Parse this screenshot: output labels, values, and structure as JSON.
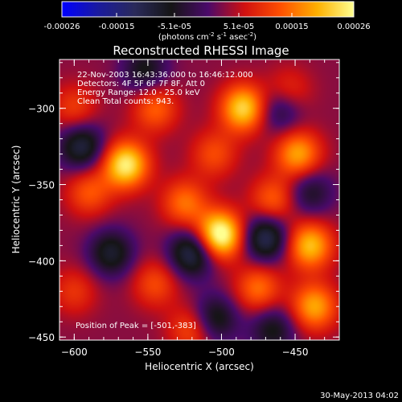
{
  "colorbar": {
    "ticks": [
      "-0.00026",
      "-0.00015",
      "-5.1e-05",
      "5.1e-05",
      "0.00015",
      "0.00026"
    ],
    "unit_text": "(photons cm",
    "unit_exp1": "-2",
    "unit_mid": " s",
    "unit_exp2": "-1",
    "unit_end": " asec",
    "unit_exp3": "-2",
    "unit_close": ")",
    "range": [
      -0.00026,
      0.00026
    ],
    "colormap": [
      "#0000ff",
      "#1a1a9e",
      "#2a2a5a",
      "#151515",
      "#4a0a6a",
      "#d01010",
      "#ff5000",
      "#ffb000",
      "#ffff90"
    ]
  },
  "chart_data": {
    "type": "heatmap",
    "title": "Reconstructed RHESSI Image",
    "xlabel": "Heliocentric X (arcsec)",
    "ylabel": "Heliocentric Y (arcsec)",
    "xlim": [
      -610,
      -420
    ],
    "ylim": [
      -452,
      -268
    ],
    "xticks": [
      -600,
      -550,
      -500,
      -450
    ],
    "yticks": [
      -300,
      -350,
      -400,
      -450
    ],
    "annotations": [
      "22-Nov-2003 16:43:36.000 to 16:46:12.000",
      "Detectors: 4F 5F 6F 7F 8F, Att 0",
      "Energy Range: 12.0 - 25.0 keV",
      "Clean     Total counts: 943."
    ],
    "peak_label": "Position of Peak = [-501,-383]",
    "peak": [
      -501,
      -383
    ],
    "blobs": [
      {
        "x": -501,
        "y": -383,
        "value": 0.00026
      },
      {
        "x": -565,
        "y": -337,
        "value": 0.00022
      },
      {
        "x": -485,
        "y": -300,
        "value": 0.0002
      },
      {
        "x": -448,
        "y": -330,
        "value": 0.00016
      },
      {
        "x": -440,
        "y": -390,
        "value": 0.00018
      },
      {
        "x": -437,
        "y": -430,
        "value": 0.00016
      },
      {
        "x": -475,
        "y": -418,
        "value": 0.00012
      },
      {
        "x": -590,
        "y": -355,
        "value": 0.0001
      },
      {
        "x": -545,
        "y": -300,
        "value": 0.00011
      },
      {
        "x": -525,
        "y": -362,
        "value": 0.00012
      },
      {
        "x": -465,
        "y": -360,
        "value": 0.00011
      },
      {
        "x": -600,
        "y": -300,
        "value": 8e-05
      },
      {
        "x": -545,
        "y": -415,
        "value": 9e-05
      },
      {
        "x": -520,
        "y": -445,
        "value": 0.0001
      },
      {
        "x": -505,
        "y": -330,
        "value": 9e-05
      },
      {
        "x": -600,
        "y": -420,
        "value": 7e-05
      },
      {
        "x": -455,
        "y": -290,
        "value": 9e-05
      },
      {
        "x": -575,
        "y": -395,
        "value": -0.00012
      },
      {
        "x": -520,
        "y": -395,
        "value": -0.00016
      },
      {
        "x": -595,
        "y": -325,
        "value": -0.00014
      },
      {
        "x": -470,
        "y": -385,
        "value": -0.00016
      },
      {
        "x": -460,
        "y": -300,
        "value": -0.00011
      },
      {
        "x": -552,
        "y": -275,
        "value": -0.0001
      },
      {
        "x": -505,
        "y": -438,
        "value": -0.00012
      },
      {
        "x": -440,
        "y": -355,
        "value": -9e-05
      },
      {
        "x": -465,
        "y": -445,
        "value": -0.0001
      }
    ]
  },
  "footer": {
    "timestamp": "30-May-2013 04:02"
  }
}
